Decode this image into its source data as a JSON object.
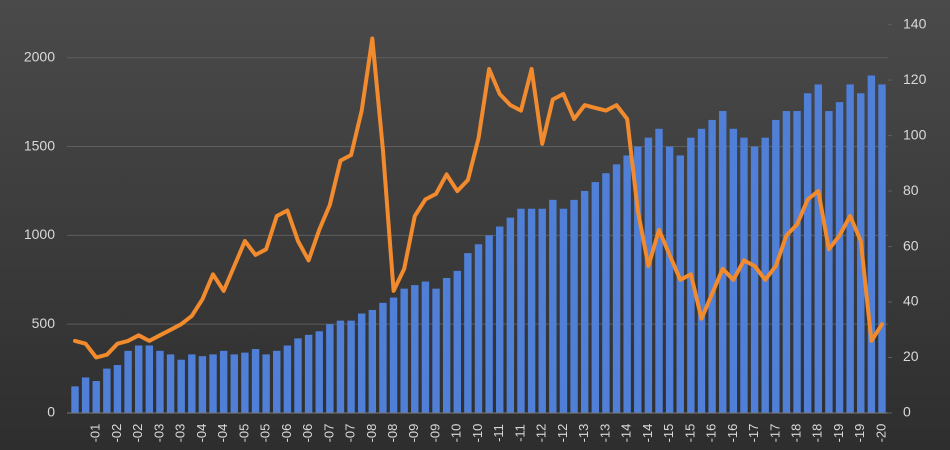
{
  "chart_data": {
    "type": "bar-line",
    "categories": [
      null,
      null,
      "-01",
      null,
      "-02",
      null,
      "-02",
      null,
      "-03",
      null,
      "-03",
      null,
      "-04",
      null,
      "-04",
      null,
      "-05",
      null,
      "-05",
      null,
      "-06",
      null,
      "-06",
      null,
      "-07",
      null,
      "-07",
      null,
      "-08",
      null,
      "-08",
      null,
      "-09",
      null,
      "-09",
      null,
      "-10",
      null,
      "-10",
      null,
      "-11",
      null,
      "-11",
      null,
      "-12",
      null,
      "-12",
      null,
      "-13",
      null,
      "-13",
      null,
      "-14",
      null,
      "-14",
      null,
      "-15",
      null,
      "-15",
      null,
      "-16",
      null,
      "-16",
      null,
      "-17",
      null,
      "-17",
      null,
      "-18",
      null,
      "-18",
      null,
      "-19",
      null,
      "-19",
      null,
      "-20"
    ],
    "series": [
      {
        "type": "bar",
        "color": "#4f7fd6",
        "values": [
          150,
          200,
          180,
          250,
          270,
          350,
          380,
          380,
          350,
          330,
          300,
          330,
          320,
          330,
          350,
          330,
          340,
          360,
          330,
          350,
          380,
          420,
          440,
          460,
          500,
          520,
          520,
          560,
          580,
          620,
          650,
          700,
          720,
          740,
          700,
          760,
          800,
          900,
          950,
          1000,
          1050,
          1100,
          1150,
          1150,
          1150,
          1200,
          1150,
          1200,
          1250,
          1300,
          1350,
          1400,
          1450,
          1500,
          1550,
          1600,
          1500,
          1450,
          1550,
          1600,
          1650,
          1700,
          1600,
          1550,
          1500,
          1550,
          1650,
          1700,
          1700,
          1800,
          1850,
          1700,
          1750,
          1850,
          1800,
          1900,
          1850
        ]
      },
      {
        "type": "line",
        "axis": "y2",
        "color": "#f28a2e",
        "values": [
          26,
          25,
          20,
          21,
          25,
          26,
          28,
          26,
          28,
          30,
          32,
          35,
          41,
          50,
          44,
          53,
          62,
          57,
          59,
          71,
          73,
          62,
          55,
          66,
          75,
          91,
          93,
          109,
          135,
          95,
          44,
          52,
          71,
          77,
          79,
          86,
          80,
          84,
          99,
          124,
          115,
          111,
          109,
          124,
          97,
          113,
          115,
          106,
          111,
          110,
          109,
          111,
          106,
          73,
          53,
          66,
          57,
          48,
          50,
          34,
          43,
          52,
          48,
          55,
          53,
          48,
          53,
          64,
          68,
          77,
          80,
          59,
          64,
          71,
          62,
          26,
          32
        ]
      }
    ],
    "ylim": [
      0,
      2280
    ],
    "yticks": [
      0,
      500,
      1000,
      1500,
      2000
    ],
    "y2lim": [
      0,
      146
    ],
    "y2ticks": [
      0,
      20,
      40,
      60,
      80,
      100,
      120,
      140
    ],
    "grid": true
  }
}
